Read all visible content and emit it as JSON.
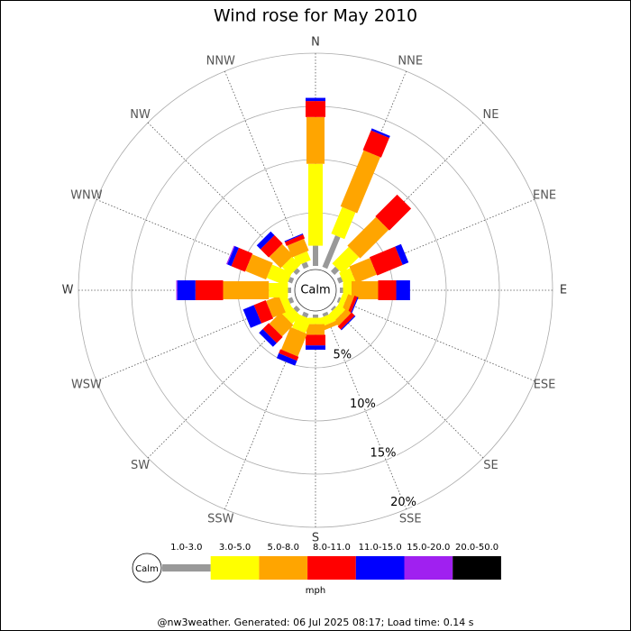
{
  "chart_data": {
    "type": "windrose",
    "title": "Wind rose for May 2010",
    "directions": [
      "N",
      "NNE",
      "NE",
      "ENE",
      "E",
      "ESE",
      "SE",
      "SSE",
      "S",
      "SSW",
      "SW",
      "WSW",
      "W",
      "WNW",
      "NW",
      "NNW"
    ],
    "calm_label": "Calm",
    "unit_label": "mph",
    "footer": "@nw3weather. Generated: 06 Jul 2025 08:17; Load time: 0.14 s",
    "rlim": [
      0,
      20
    ],
    "rticks": [
      {
        "value": 5,
        "label": "5%"
      },
      {
        "value": 10,
        "label": "10%"
      },
      {
        "value": 15,
        "label": "15%"
      },
      {
        "value": 20,
        "label": "20%"
      }
    ],
    "series": [
      {
        "name": "1.0-3.0",
        "color": "#999999",
        "values": [
          1.9,
          3.2,
          0.6,
          0.4,
          0.3,
          0.2,
          0.2,
          0.3,
          0.3,
          0.4,
          0.4,
          0.4,
          0.3,
          0.4,
          0.4,
          0.5
        ]
      },
      {
        "name": "3.0-5.0",
        "color": "#ffff00",
        "values": [
          7.7,
          2.7,
          2.2,
          1.1,
          0.8,
          0.5,
          0.8,
          0.8,
          0.6,
          1.4,
          1.1,
          0.7,
          1.8,
          2.0,
          1.1,
          0.9
        ]
      },
      {
        "name": "5.0-8.0",
        "color": "#ffa500",
        "values": [
          4.4,
          5.7,
          3.8,
          2.1,
          2.5,
          0.6,
          0.6,
          0.4,
          1.0,
          2.3,
          1.5,
          1.3,
          4.3,
          2.1,
          1.5,
          1.2
        ]
      },
      {
        "name": "8.0-11.0",
        "color": "#ff0000",
        "values": [
          1.5,
          2.0,
          2.9,
          2.6,
          1.7,
          0.3,
          0.4,
          0,
          1.0,
          0.4,
          0.8,
          1.2,
          2.6,
          1.4,
          1.1,
          0.4
        ]
      },
      {
        "name": "11.0-15.0",
        "color": "#0000ff",
        "values": [
          0.3,
          0.2,
          0,
          0.6,
          1.3,
          0.1,
          0.1,
          0,
          0.4,
          0.5,
          0.5,
          1.1,
          1.7,
          0.4,
          0.5,
          0.1
        ]
      },
      {
        "name": "15.0-20.0",
        "color": "#a020f0",
        "values": [
          0,
          0,
          0,
          0,
          0,
          0,
          0,
          0,
          0,
          0,
          0,
          0,
          0.1,
          0.1,
          0,
          0
        ]
      },
      {
        "name": "20.0-50.0",
        "color": "#000000",
        "values": [
          0,
          0,
          0,
          0,
          0,
          0,
          0,
          0,
          0,
          0,
          0,
          0,
          0,
          0,
          0,
          0
        ]
      }
    ]
  }
}
